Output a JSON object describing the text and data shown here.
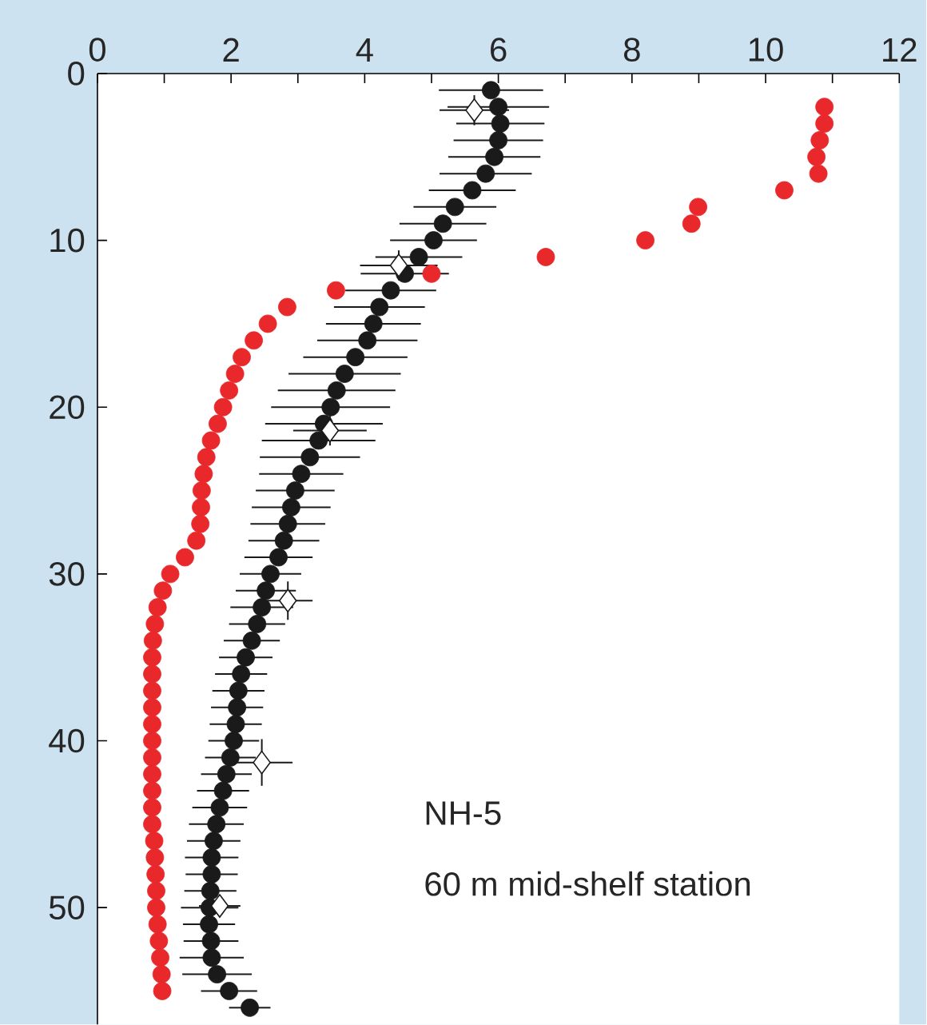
{
  "chart_data": {
    "type": "scatter",
    "xlim": [
      0,
      12
    ],
    "ylim": [
      57,
      0
    ],
    "xticks": [
      0,
      {
        "value": 1,
        "label": null
      },
      2,
      {
        "value": 3,
        "label": null
      },
      4,
      {
        "value": 5,
        "label": null
      },
      6,
      {
        "value": 7,
        "label": null
      },
      8,
      {
        "value": 9,
        "label": null
      },
      10,
      {
        "value": 11,
        "label": null
      },
      12
    ],
    "yticks": [
      0,
      10,
      20,
      30,
      40,
      50
    ],
    "annotations": [
      "NH-5",
      "60 m mid-shelf station"
    ],
    "series": [
      {
        "color": "#1a1a1a",
        "marker": "circle",
        "x": [
          5.89,
          6.0,
          6.03,
          6.0,
          5.94,
          5.81,
          5.61,
          5.35,
          5.17,
          5.03,
          4.81,
          4.6,
          4.39,
          4.22,
          4.13,
          4.04,
          3.86,
          3.7,
          3.58,
          3.49,
          3.39,
          3.31,
          3.18,
          3.05,
          2.96,
          2.9,
          2.85,
          2.79,
          2.71,
          2.59,
          2.52,
          2.46,
          2.39,
          2.31,
          2.22,
          2.15,
          2.11,
          2.09,
          2.07,
          2.04,
          1.99,
          1.93,
          1.88,
          1.83,
          1.78,
          1.74,
          1.71,
          1.71,
          1.69,
          1.68,
          1.67,
          1.7,
          1.71,
          1.79,
          1.97,
          2.28
        ],
        "values": [
          1,
          2,
          3,
          4,
          5,
          6,
          7,
          8,
          9,
          10,
          11,
          12,
          13,
          14,
          15,
          16,
          17,
          18,
          19,
          20,
          21,
          22,
          23,
          24,
          25,
          26,
          27,
          28,
          29,
          30,
          31,
          32,
          33,
          34,
          35,
          36,
          37,
          38,
          39,
          40,
          41,
          42,
          43,
          44,
          45,
          46,
          47,
          48,
          49,
          50,
          51,
          52,
          53,
          54,
          55,
          56
        ],
        "xerrors": [
          0.78,
          0.76,
          0.66,
          0.67,
          0.69,
          0.69,
          0.65,
          0.62,
          0.65,
          0.65,
          0.65,
          0.66,
          0.68,
          0.68,
          0.71,
          0.75,
          0.78,
          0.84,
          0.88,
          0.89,
          0.88,
          0.85,
          0.75,
          0.63,
          0.59,
          0.59,
          0.56,
          0.53,
          0.51,
          0.46,
          0.45,
          0.47,
          0.42,
          0.42,
          0.4,
          0.39,
          0.39,
          0.39,
          0.39,
          0.38,
          0.38,
          0.38,
          0.39,
          0.41,
          0.41,
          0.4,
          0.4,
          0.39,
          0.39,
          0.43,
          0.39,
          0.41,
          0.48,
          0.52,
          0.42,
          0.31
        ]
      },
      {
        "color": "#1a1a1a",
        "marker": "diamond",
        "x": [
          5.64,
          4.51,
          3.48,
          2.85,
          2.46,
          1.83
        ],
        "values": [
          2.2,
          11.5,
          21.4,
          31.6,
          41.3,
          49.9
        ],
        "xerrors": [
          0.52,
          0.58,
          0.55,
          0.37,
          0.46,
          0.31
        ],
        "errors": [
          0.9,
          0.9,
          0.9,
          1.15,
          1.4,
          0.3
        ]
      },
      {
        "color": "#e8282b",
        "marker": "circle",
        "x": [
          10.88,
          10.88,
          10.81,
          10.76,
          10.79,
          10.28,
          8.99,
          8.89,
          8.2,
          6.71,
          5.0,
          3.57,
          2.84,
          2.55,
          2.34,
          2.16,
          2.06,
          1.97,
          1.88,
          1.8,
          1.7,
          1.63,
          1.59,
          1.56,
          1.55,
          1.54,
          1.48,
          1.31,
          1.09,
          0.98,
          0.9,
          0.86,
          0.83,
          0.82,
          0.82,
          0.82,
          0.82,
          0.82,
          0.82,
          0.82,
          0.82,
          0.82,
          0.82,
          0.82,
          0.85,
          0.86,
          0.87,
          0.88,
          0.88,
          0.9,
          0.92,
          0.94,
          0.96,
          0.97
        ],
        "values": [
          2,
          3,
          4,
          5,
          6,
          7,
          8,
          9,
          10,
          11,
          12,
          13,
          14,
          15,
          16,
          17,
          18,
          19,
          20,
          21,
          22,
          23,
          24,
          25,
          26,
          27,
          28,
          29,
          30,
          31,
          32,
          33,
          34,
          35,
          36,
          37,
          38,
          39,
          40,
          41,
          42,
          43,
          44,
          45,
          46,
          47,
          48,
          49,
          50,
          51,
          52,
          53,
          54,
          55
        ]
      }
    ]
  }
}
